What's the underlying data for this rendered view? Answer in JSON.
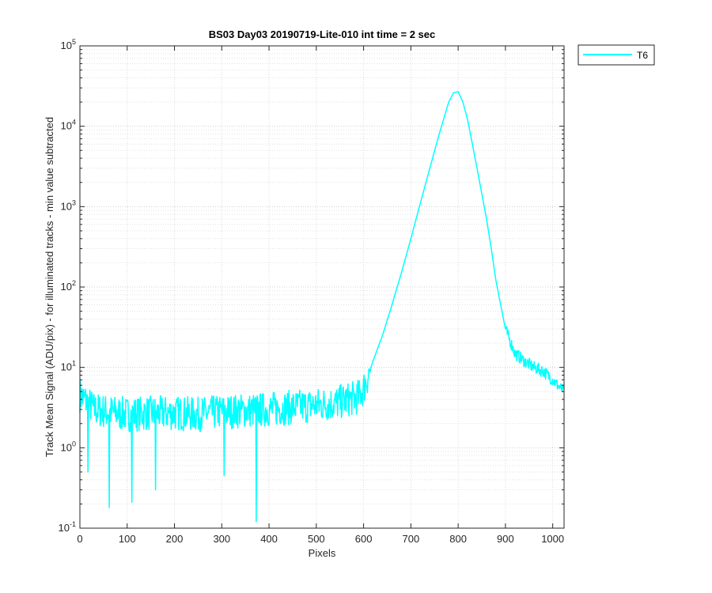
{
  "chart_data": {
    "type": "line",
    "title": "BS03 Day03 20190719-Lite-010 int time = 2 sec",
    "xlabel": "Pixels",
    "ylabel": "Track Mean Signal (ADU/pix) - for illuminated tracks - min value subtracted",
    "xlim": [
      0,
      1024
    ],
    "ylim": [
      0.1,
      100000
    ],
    "yscale": "log",
    "grid": "major and minor, dotted",
    "legend_position": "outside top-right",
    "x_ticks": [
      "0",
      "100",
      "200",
      "300",
      "400",
      "500",
      "600",
      "700",
      "800",
      "900",
      "1000"
    ],
    "y_ticks": [
      {
        "base": "10",
        "exp": "-1"
      },
      {
        "base": "10",
        "exp": "0"
      },
      {
        "base": "10",
        "exp": "1"
      },
      {
        "base": "10",
        "exp": "2"
      },
      {
        "base": "10",
        "exp": "3"
      },
      {
        "base": "10",
        "exp": "4"
      },
      {
        "base": "10",
        "exp": "5"
      }
    ],
    "series": [
      {
        "name": "T6",
        "color": "#00ffff",
        "x": [
          0,
          10,
          30,
          60,
          100,
          150,
          200,
          250,
          300,
          350,
          400,
          450,
          500,
          540,
          570,
          590,
          600,
          610,
          620,
          640,
          660,
          680,
          700,
          720,
          740,
          760,
          780,
          790,
          800,
          810,
          820,
          840,
          860,
          870,
          880,
          900,
          920,
          940,
          960,
          980,
          1000,
          1023
        ],
        "y": [
          4.5,
          4,
          3,
          2.8,
          2.6,
          2.7,
          2.7,
          2.6,
          2.8,
          2.9,
          3.0,
          3.2,
          3.4,
          3.6,
          4.0,
          4.3,
          5.5,
          8,
          12,
          25,
          60,
          150,
          400,
          1100,
          3000,
          8000,
          20000,
          26000,
          27000,
          20000,
          12000,
          3000,
          700,
          300,
          120,
          30,
          15,
          12,
          10,
          9,
          7,
          5
        ],
        "dips": [
          [
            17,
            0.5
          ],
          [
            62,
            0.18
          ],
          [
            110,
            0.21
          ],
          [
            160,
            0.3
          ],
          [
            305,
            0.45
          ],
          [
            373,
            0.12
          ]
        ]
      }
    ]
  }
}
